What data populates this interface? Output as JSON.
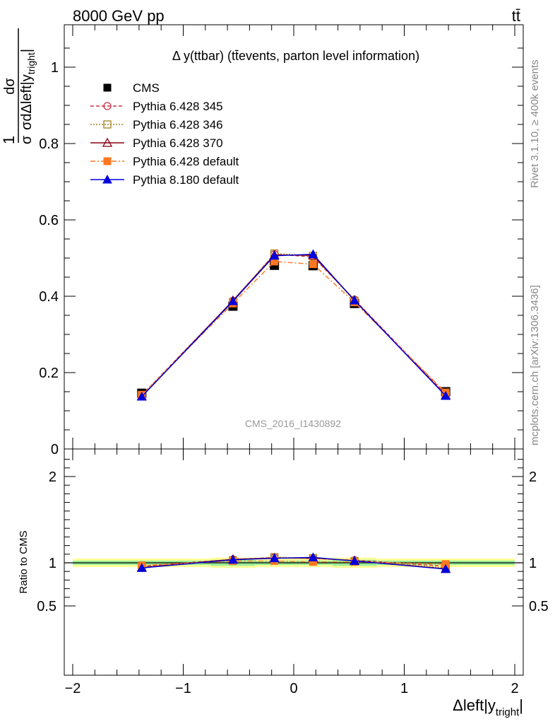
{
  "header": {
    "energy_label": "8000 GeV pp",
    "process_label": "tt̄"
  },
  "side_labels": {
    "rivet": "Rivet 3.1.10, ≥ 400k events",
    "source": "mcplots.cern.ch [arXiv:1306.3436]"
  },
  "chart_data": [
    {
      "type": "line",
      "panel": "main",
      "title": "Δ y(ttbar) (tt̄events, parton level information)",
      "analysis_label": "CMS_2016_I1430892",
      "ylabel_numerator": "dσ",
      "ylabel_denominator": "σdΔleft|y",
      "ylabel_subscript": "tright",
      "xlim": [
        -2,
        2
      ],
      "ylim": [
        0,
        1.1
      ],
      "y_ticks": [
        "0",
        "0.2",
        "0.4",
        "0.6",
        "0.8",
        "1"
      ],
      "x": [
        -1.375,
        -0.55,
        -0.175,
        0.175,
        0.55,
        1.375
      ],
      "legend_position": "top-left",
      "series": [
        {
          "name": "CMS",
          "color": "#000000",
          "marker": "square",
          "values": [
            0.146,
            0.374,
            0.481,
            0.48,
            0.381,
            0.15
          ]
        },
        {
          "name": "Pythia 6.428 345",
          "color": "#cc3344",
          "marker": "open-circle",
          "dash": "5,3",
          "values": [
            0.141,
            0.388,
            0.51,
            0.503,
            0.391,
            0.144
          ]
        },
        {
          "name": "Pythia 6.428 346",
          "color": "#a08020",
          "marker": "open-square",
          "dash": "2,2",
          "values": [
            0.139,
            0.385,
            0.512,
            0.506,
            0.388,
            0.141
          ]
        },
        {
          "name": "Pythia 6.428 370",
          "color": "#880011",
          "marker": "open-triangle",
          "values": [
            0.138,
            0.389,
            0.508,
            0.507,
            0.39,
            0.14
          ]
        },
        {
          "name": "Pythia 6.428 default",
          "color": "#ff7722",
          "marker": "filled-square",
          "dash": "7,3,2,3",
          "values": [
            0.142,
            0.381,
            0.491,
            0.484,
            0.384,
            0.148
          ]
        },
        {
          "name": "Pythia 8.180 default",
          "color": "#0000dd",
          "marker": "filled-triangle",
          "values": [
            0.137,
            0.387,
            0.506,
            0.51,
            0.389,
            0.139
          ]
        }
      ]
    },
    {
      "type": "line",
      "panel": "ratio",
      "ylabel": "Ratio to CMS",
      "xlabel_main": "Δleft|y",
      "xlabel_subscript": "tright",
      "xlabel_end": "|",
      "xlim": [
        -2,
        2
      ],
      "ylim": [
        0.4,
        2.3
      ],
      "y_ticks": [
        "0.5",
        "1",
        "2"
      ],
      "x_ticks": [
        "−2",
        "−1",
        "0",
        "1",
        "2"
      ],
      "bands": {
        "edges": [
          -2,
          -0.75,
          -0.35,
          0,
          0.35,
          0.75,
          2
        ],
        "inner_half_width": [
          0.025,
          0.035,
          0.025,
          0.025,
          0.035,
          0.025
        ],
        "outer_half_width": [
          0.05,
          0.06,
          0.05,
          0.05,
          0.06,
          0.05
        ],
        "inner_color": "#99ee99",
        "outer_color": "#ffff99"
      },
      "x": [
        -1.375,
        -0.55,
        -0.175,
        0.175,
        0.55,
        1.375
      ],
      "series": [
        {
          "name": "Pythia 6.428 345",
          "color": "#cc3344",
          "marker": "open-circle",
          "dash": "5,3",
          "values": [
            0.96,
            1.04,
            1.06,
            1.05,
            1.03,
            0.96
          ]
        },
        {
          "name": "Pythia 6.428 346",
          "color": "#a08020",
          "marker": "open-square",
          "dash": "2,2",
          "values": [
            0.95,
            1.03,
            1.065,
            1.055,
            1.02,
            0.94
          ]
        },
        {
          "name": "Pythia 6.428 370",
          "color": "#880011",
          "marker": "open-triangle",
          "values": [
            0.945,
            1.04,
            1.055,
            1.056,
            1.025,
            0.93
          ]
        },
        {
          "name": "Pythia 6.428 default",
          "color": "#ff7722",
          "marker": "filled-square",
          "dash": "7,3,2,3",
          "values": [
            0.97,
            1.02,
            1.02,
            1.01,
            1.01,
            0.985
          ]
        },
        {
          "name": "Pythia 8.180 default",
          "color": "#0000dd",
          "marker": "filled-triangle",
          "values": [
            0.94,
            1.035,
            1.052,
            1.063,
            1.021,
            0.927
          ]
        }
      ]
    }
  ]
}
